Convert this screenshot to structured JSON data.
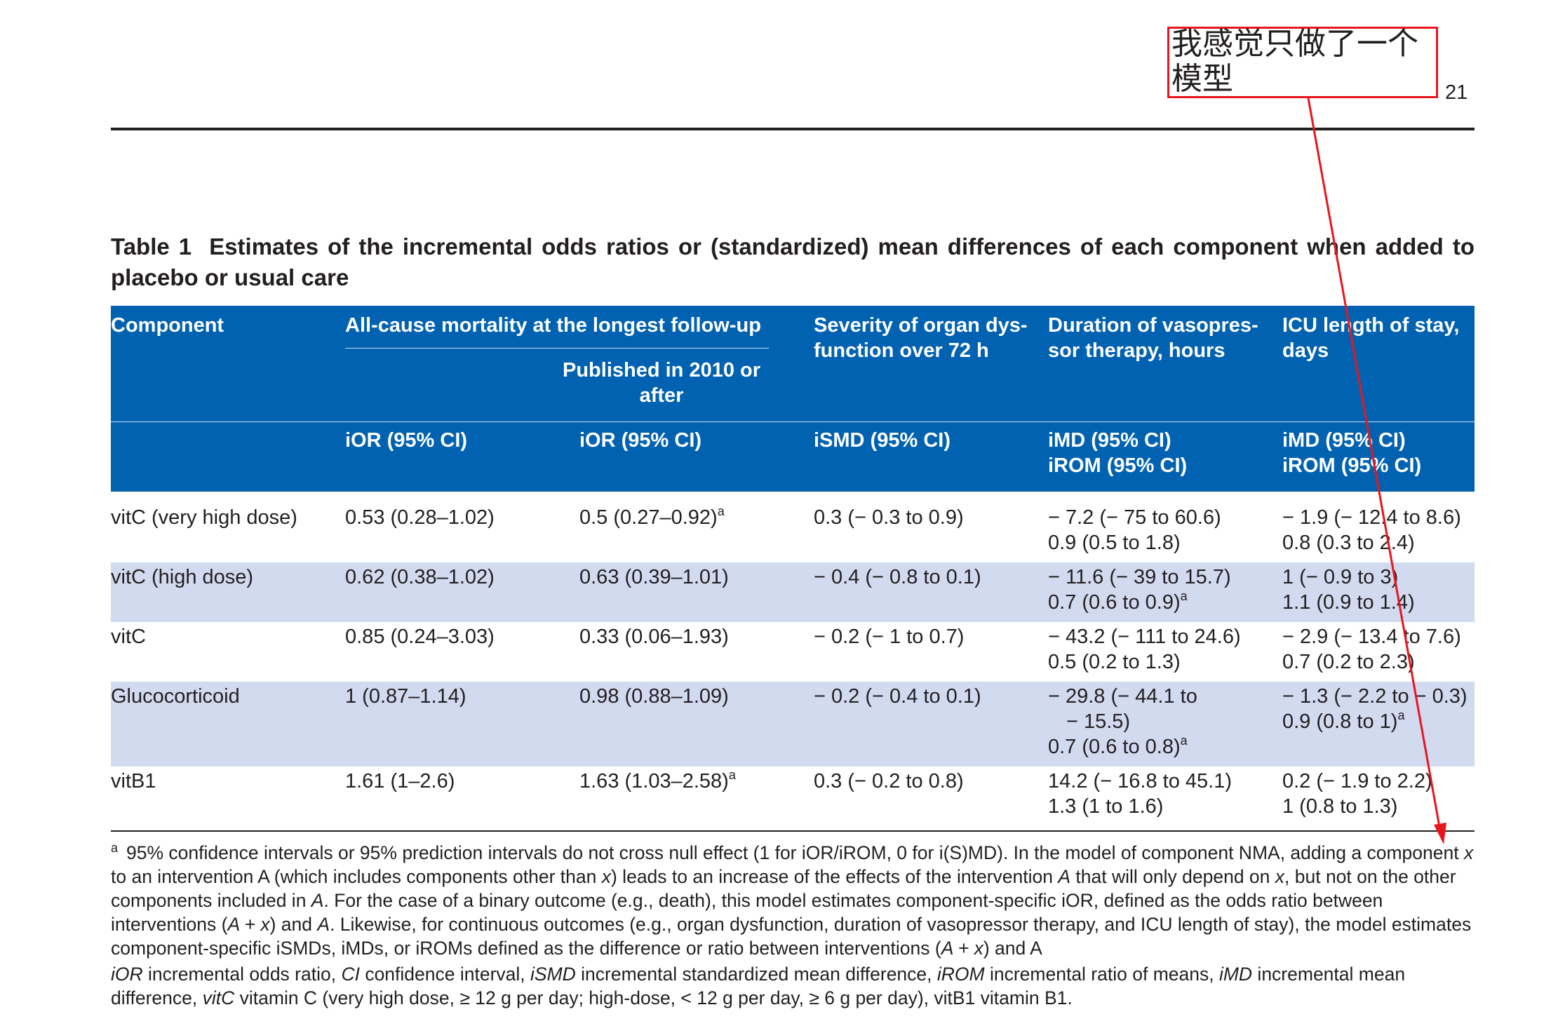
{
  "page": {
    "number": "21"
  },
  "annotation": {
    "text_line1": "我感觉只做了一个",
    "text_line2": "模型",
    "color": "#e8151d"
  },
  "table": {
    "label": "Table 1",
    "title": "Estimates of the incremental odds ratios or (standardized) mean differences of each component when added to placebo or usual care",
    "header_color": "#0062b0",
    "shade_color": "#d2daf0",
    "headers": {
      "component": "Component",
      "mortality": "All-cause mortality at the longest follow-up",
      "published": "Published in 2010 or after",
      "organ_line1": "Severity of organ dys-",
      "organ_line2": "function over 72 h",
      "vaso_line1": "Duration of vasopres-",
      "vaso_line2": "sor therapy, hours",
      "icu_line1": "ICU length of stay,",
      "icu_line2": "days",
      "ior1": "iOR (95% CI)",
      "ior2": "iOR (95% CI)",
      "ismd": "iSMD (95% CI)",
      "vaso_imd": "iMD (95% CI)",
      "vaso_irom": "iROM (95% CI)",
      "icu_imd": "iMD (95% CI)",
      "icu_irom": "iROM (95% CI)"
    },
    "rows": [
      {
        "component": "vitC (very high dose)",
        "ior": "0.53 (0.28–1.02)",
        "ior_2010": "0.5 (0.27–0.92)",
        "ior_2010_mark": "a",
        "ismd": "0.3 (− 0.3 to 0.9)",
        "vaso_imd": "− 7.2 (− 75 to 60.6)",
        "vaso_imd_cont": "",
        "vaso_irom": "0.9 (0.5 to 1.8)",
        "vaso_irom_mark": "",
        "icu_imd": "− 1.9 (− 12.4 to 8.6)",
        "icu_irom": "0.8 (0.3 to 2.4)",
        "icu_irom_mark": ""
      },
      {
        "component": "vitC (high dose)",
        "ior": "0.62 (0.38–1.02)",
        "ior_2010": "0.63 (0.39–1.01)",
        "ior_2010_mark": "",
        "ismd": "− 0.4 (− 0.8 to 0.1)",
        "vaso_imd": "− 11.6 (− 39 to 15.7)",
        "vaso_imd_cont": "",
        "vaso_irom": "0.7 (0.6 to 0.9)",
        "vaso_irom_mark": "a",
        "icu_imd": "1 (− 0.9 to 3)",
        "icu_irom": "1.1 (0.9 to 1.4)",
        "icu_irom_mark": ""
      },
      {
        "component": "vitC",
        "ior": "0.85 (0.24–3.03)",
        "ior_2010": "0.33 (0.06–1.93)",
        "ior_2010_mark": "",
        "ismd": "− 0.2 (− 1 to 0.7)",
        "vaso_imd": "− 43.2 (− 111 to 24.6)",
        "vaso_imd_cont": "",
        "vaso_irom": "0.5 (0.2 to 1.3)",
        "vaso_irom_mark": "",
        "icu_imd": "− 2.9 (− 13.4 to 7.6)",
        "icu_irom": "0.7 (0.2 to 2.3)",
        "icu_irom_mark": ""
      },
      {
        "component": "Glucocorticoid",
        "ior": "1 (0.87–1.14)",
        "ior_2010": "0.98 (0.88–1.09)",
        "ior_2010_mark": "",
        "ismd": "− 0.2 (− 0.4 to 0.1)",
        "vaso_imd": "− 29.8 (− 44.1 to",
        "vaso_imd_cont": "− 15.5)",
        "vaso_irom": "0.7 (0.6 to 0.8)",
        "vaso_irom_mark": "a",
        "icu_imd": "− 1.3 (− 2.2 to − 0.3)",
        "icu_irom": "0.9 (0.8 to 1)",
        "icu_irom_mark": "a"
      },
      {
        "component": "vitB1",
        "ior": "1.61 (1–2.6)",
        "ior_2010": "1.63 (1.03–2.58)",
        "ior_2010_mark": "a",
        "ismd": "0.3 (− 0.2 to 0.8)",
        "vaso_imd": "14.2 (− 16.8 to 45.1)",
        "vaso_imd_cont": "",
        "vaso_irom": "1.3 (1 to 1.6)",
        "vaso_irom_mark": "",
        "icu_imd": "0.2 (− 1.9 to 2.2)",
        "icu_irom": "1 (0.8 to 1.3)",
        "icu_irom_mark": ""
      }
    ],
    "footnote": {
      "mark": "a",
      "p1": "95% confidence intervals or 95% prediction intervals do not cross null effect (1 for iOR/iROM, 0 for i(S)MD). In the model of component NMA, adding a component ",
      "x1": "x",
      "p2": " to an intervention A (which includes components other than ",
      "x2": "x",
      "p3": ") leads to an increase of the effects of the intervention ",
      "a1": "A",
      "p4": " that will only depend on ",
      "x3": "x",
      "p5": ", but not on the other components included in ",
      "a2": "A",
      "p6": ". For the case of a binary outcome (e.g., death), this model estimates component-specific iOR, defined as the odds ratio between interventions (",
      "ax1": "A + x",
      "p7": ") and ",
      "a3": "A",
      "p8": ". Likewise, for continuous outcomes (e.g., organ dysfunction, duration of vasopressor therapy, and ICU length of stay), the model estimates component-specific iSMDs, iMDs, or iROMs defined as the difference or ratio between interventions (",
      "ax2": "A + x",
      "p9": ") and A"
    },
    "abbreviations": {
      "t1": "iOR",
      "d1": " incremental odds ratio, ",
      "t2": "CI",
      "d2": " confidence interval, ",
      "t3": "iSMD",
      "d3": " incremental standardized mean difference, ",
      "t4": "iROM",
      "d4": " incremental ratio of means, ",
      "t5": "iMD",
      "d5": " incremental mean difference, ",
      "t6": "vitC",
      "d6": " vitamin C (very high dose, ≥ 12 g per day; high-dose, < 12 g per day, ≥ 6 g per day), vitB1 vitamin B1."
    }
  }
}
